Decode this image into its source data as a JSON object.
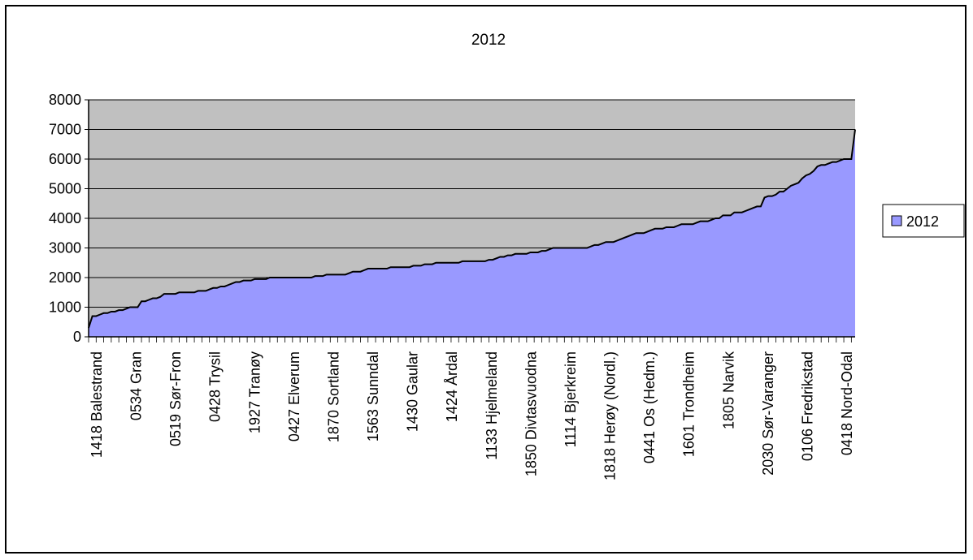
{
  "chart_data": {
    "type": "area",
    "title": "2012",
    "xlabel": "",
    "ylabel": "",
    "ylim": [
      0,
      8000
    ],
    "yticks": [
      0,
      1000,
      2000,
      3000,
      4000,
      5000,
      6000,
      7000,
      8000
    ],
    "grid": true,
    "legend": "right",
    "colors": {
      "plot_background": "#c0c0c0",
      "area_fill": "#9999ff",
      "area_outline": "#000000",
      "gridline": "#000000"
    },
    "x_tick_labels": [
      "1418 Balestrand",
      "0534 Gran",
      "0519 Sør-Fron",
      "0428 Trysil",
      "1927 Tranøy",
      "0427 Elverum",
      "1870 Sortland",
      "1563 Sunndal",
      "1430 Gaular",
      "1424 Årdal",
      "1133 Hjelmeland",
      "1850 Divtasvuodna",
      "1114 Bjerkreim",
      "1818 Herøy (Nordl.)",
      "0441 Os (Hedm.)",
      "1601 Trondheim",
      "1805 Narvik",
      "2030 Sør-Varanger",
      "0106 Fredrikstad",
      "0418 Nord-Odal"
    ],
    "series": [
      {
        "name": "2012",
        "values": [
          300,
          700,
          700,
          750,
          800,
          800,
          850,
          850,
          900,
          900,
          950,
          1000,
          1000,
          1000,
          1200,
          1200,
          1250,
          1300,
          1300,
          1350,
          1450,
          1450,
          1450,
          1450,
          1500,
          1500,
          1500,
          1500,
          1500,
          1550,
          1550,
          1550,
          1600,
          1650,
          1650,
          1700,
          1700,
          1750,
          1800,
          1850,
          1850,
          1900,
          1900,
          1900,
          1950,
          1950,
          1950,
          1950,
          2000,
          2000,
          2000,
          2000,
          2000,
          2000,
          2000,
          2000,
          2000,
          2000,
          2000,
          2000,
          2050,
          2050,
          2050,
          2100,
          2100,
          2100,
          2100,
          2100,
          2100,
          2150,
          2200,
          2200,
          2200,
          2250,
          2300,
          2300,
          2300,
          2300,
          2300,
          2300,
          2350,
          2350,
          2350,
          2350,
          2350,
          2350,
          2400,
          2400,
          2400,
          2450,
          2450,
          2450,
          2500,
          2500,
          2500,
          2500,
          2500,
          2500,
          2500,
          2550,
          2550,
          2550,
          2550,
          2550,
          2550,
          2550,
          2600,
          2600,
          2650,
          2700,
          2700,
          2750,
          2750,
          2800,
          2800,
          2800,
          2800,
          2850,
          2850,
          2850,
          2900,
          2900,
          2950,
          3000,
          3000,
          3000,
          3000,
          3000,
          3000,
          3000,
          3000,
          3000,
          3000,
          3050,
          3100,
          3100,
          3150,
          3200,
          3200,
          3200,
          3250,
          3300,
          3350,
          3400,
          3450,
          3500,
          3500,
          3500,
          3550,
          3600,
          3650,
          3650,
          3650,
          3700,
          3700,
          3700,
          3750,
          3800,
          3800,
          3800,
          3800,
          3850,
          3900,
          3900,
          3900,
          3950,
          4000,
          4000,
          4100,
          4100,
          4100,
          4200,
          4200,
          4200,
          4250,
          4300,
          4350,
          4400,
          4400,
          4700,
          4750,
          4750,
          4800,
          4900,
          4900,
          5000,
          5100,
          5150,
          5200,
          5350,
          5450,
          5500,
          5600,
          5750,
          5800,
          5800,
          5850,
          5900,
          5900,
          5950,
          6000,
          6000,
          6000,
          7000
        ]
      }
    ]
  }
}
